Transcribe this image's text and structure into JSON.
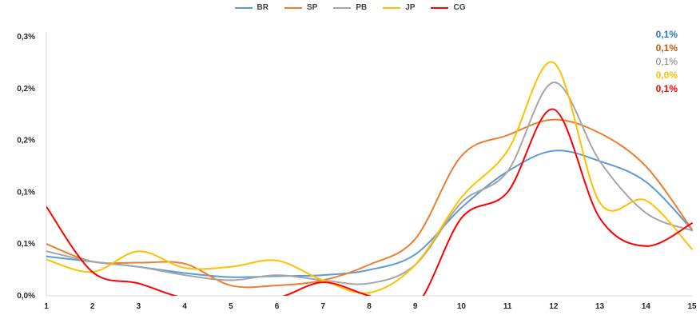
{
  "chart_data": {
    "type": "line",
    "title": "",
    "xlabel": "",
    "ylabel": "",
    "x": [
      1,
      2,
      3,
      4,
      5,
      6,
      7,
      8,
      9,
      10,
      11,
      12,
      13,
      14,
      15
    ],
    "x_tick_labels": [
      "1",
      "2",
      "3",
      "4",
      "5",
      "6",
      "7",
      "8",
      "9",
      "10",
      "11",
      "12",
      "13",
      "14",
      "15"
    ],
    "y_tick_labels": [
      "0,0%",
      "0,1%",
      "0,1%",
      "0,2%",
      "0,2%",
      "0,3%"
    ],
    "y_tick_values": [
      0.0,
      0.05,
      0.1,
      0.15,
      0.2,
      0.25
    ],
    "ylim": [
      0.0,
      0.25
    ],
    "grid": false,
    "legend_position": "top",
    "series": [
      {
        "name": "BR",
        "color": "#5b9bd5",
        "values": [
          0.038,
          0.033,
          0.028,
          0.022,
          0.018,
          0.019,
          0.02,
          0.025,
          0.04,
          0.085,
          0.12,
          0.14,
          0.13,
          0.11,
          0.064
        ]
      },
      {
        "name": "SP",
        "color": "#ed7d31",
        "values": [
          0.05,
          0.033,
          0.032,
          0.031,
          0.01,
          0.01,
          0.015,
          0.03,
          0.055,
          0.135,
          0.155,
          0.17,
          0.157,
          0.125,
          0.064
        ]
      },
      {
        "name": "PB",
        "color": "#a5a5a5",
        "values": [
          0.043,
          0.033,
          0.028,
          0.02,
          0.015,
          0.02,
          0.015,
          0.012,
          0.03,
          0.09,
          0.12,
          0.206,
          0.13,
          0.08,
          0.063
        ]
      },
      {
        "name": "JP",
        "color": "#ffc000",
        "values": [
          0.035,
          0.023,
          0.043,
          0.027,
          0.028,
          0.034,
          0.015,
          0.003,
          0.03,
          0.095,
          0.14,
          0.225,
          0.09,
          0.092,
          0.045
        ]
      },
      {
        "name": "CG",
        "color": "#ff0000",
        "values": [
          0.086,
          0.023,
          0.012,
          -0.002,
          -0.002,
          -0.002,
          0.013,
          0.0,
          -0.01,
          0.075,
          0.1,
          0.18,
          0.075,
          0.048,
          0.07
        ]
      }
    ],
    "annotations": [
      {
        "text": "0,1%",
        "color": "#2e75b6"
      },
      {
        "text": "0,1%",
        "color": "#c55a11"
      },
      {
        "text": "0,1%",
        "color": "#7f7f7f"
      },
      {
        "text": "0,0%",
        "color": "#ffc000"
      },
      {
        "text": "0,1%",
        "color": "#ff0000"
      }
    ]
  }
}
